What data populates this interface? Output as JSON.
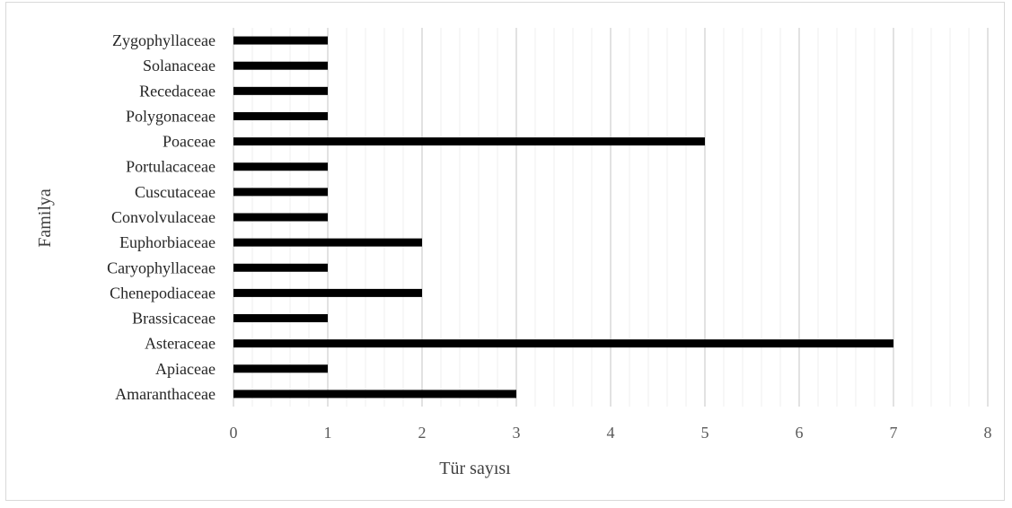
{
  "chart_data": {
    "type": "bar",
    "orientation": "horizontal",
    "categories": [
      "Amaranthaceae",
      "Apiaceae",
      "Asteraceae",
      "Brassicaceae",
      "Chenepodiaceae",
      "Caryophyllaceae",
      "Euphorbiaceae",
      "Convolvulaceae",
      "Cuscutaceae",
      "Portulacaceae",
      "Poaceae",
      "Polygonaceae",
      "Recedaceae",
      "Solanaceae",
      "Zygophyllaceae"
    ],
    "values": [
      3,
      1,
      7,
      1,
      2,
      1,
      2,
      1,
      1,
      1,
      5,
      1,
      1,
      1,
      1
    ],
    "xlabel": "Tür sayısı",
    "ylabel": "Familya",
    "xlim": [
      0,
      8
    ],
    "xticks": [
      "0",
      "1",
      "2",
      "3",
      "4",
      "5",
      "6",
      "7",
      "8"
    ],
    "major_grid": true,
    "minor_grid": true,
    "bar_color": "#000000",
    "grid_color": "#d9d9d9"
  }
}
